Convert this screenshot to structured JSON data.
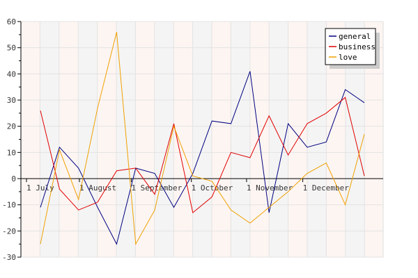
{
  "chart_data": {
    "type": "line",
    "title": "",
    "xlabel": "",
    "ylabel": "",
    "ylim": [
      -30,
      60
    ],
    "yticks": [
      -30,
      -20,
      -10,
      0,
      10,
      20,
      30,
      40,
      50,
      60
    ],
    "xlim": [
      0,
      19
    ],
    "month_labels": [
      {
        "label": "1 July",
        "x": 0
      },
      {
        "label": "1 August",
        "x": 2.78
      },
      {
        "label": "1 September",
        "x": 5.5
      },
      {
        "label": "1 October",
        "x": 8.65
      },
      {
        "label": "1 November",
        "x": 11.55
      },
      {
        "label": "1 December",
        "x": 14.5
      }
    ],
    "grid": true,
    "legend_position": "top-right",
    "series": [
      {
        "name": "general",
        "color": "#000080",
        "x": [
          0,
          1,
          2,
          3,
          4,
          5,
          6,
          7,
          8,
          9,
          10,
          11,
          12,
          13,
          14,
          15,
          16,
          17
        ],
        "values": [
          -11,
          12,
          4,
          -11,
          -25,
          4,
          2,
          -11,
          2,
          22,
          21,
          41,
          -13,
          21,
          12,
          14,
          34,
          29
        ]
      },
      {
        "name": "business",
        "color": "#e00000",
        "x": [
          0,
          1,
          2,
          3,
          4,
          5,
          6,
          7,
          8,
          9,
          10,
          11,
          12,
          13,
          14,
          15,
          16,
          17
        ],
        "values": [
          26,
          -4,
          -12,
          -9,
          3,
          4,
          -6,
          21,
          -13,
          -7,
          10,
          8,
          24,
          9,
          21,
          25,
          31,
          1
        ]
      },
      {
        "name": "love",
        "color": "#f0a000",
        "x": [
          0,
          1,
          2,
          3,
          4,
          5,
          6,
          7,
          8,
          9,
          10,
          11,
          12,
          13,
          14,
          15,
          16,
          17
        ],
        "values": [
          -25,
          11,
          -8,
          27,
          56,
          -25,
          -12,
          20,
          1,
          -1,
          -12,
          -17,
          -11,
          -5,
          2,
          6,
          -10,
          17
        ]
      }
    ]
  }
}
